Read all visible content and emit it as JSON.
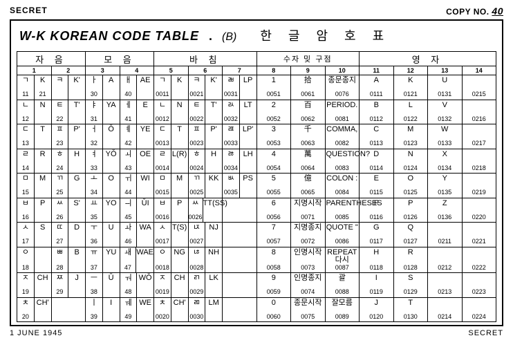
{
  "header": {
    "secret": "SECRET",
    "copy_label": "COPY NO.",
    "copy_num": "40"
  },
  "title": {
    "eng": "W-K KOREAN CODE TABLE",
    "dot": ".",
    "paren": "(B)",
    "kor": "한글암호표"
  },
  "groups": [
    {
      "label": "자 음",
      "cols": [
        "1",
        "2"
      ],
      "tight": false
    },
    {
      "label": "모 음",
      "cols": [
        "3",
        "4"
      ],
      "tight": false
    },
    {
      "label": "바 침",
      "cols": [
        "5",
        "6",
        "7"
      ],
      "tight": false
    },
    {
      "label": "수자 밎 구점",
      "cols": [
        "8",
        "9",
        "10"
      ],
      "tight": true
    },
    {
      "label": "영 자",
      "cols": [
        "11",
        "12",
        "13",
        "14"
      ],
      "tight": false
    }
  ],
  "rows": [
    [
      {
        "t": "sp",
        "l": {
          "s": "ㄱ",
          "c": "11"
        },
        "r": {
          "s": "K",
          "c": "21"
        }
      },
      {
        "t": "sp",
        "l": {
          "s": "ㅋ",
          "c": ""
        },
        "r": {
          "s": "K'",
          "c": ""
        }
      },
      {
        "t": "sp",
        "l": {
          "s": "ㅏ",
          "c": "30"
        },
        "r": {
          "s": "A",
          "c": ""
        }
      },
      {
        "t": "sp",
        "l": {
          "s": "ㅐ",
          "c": "40"
        },
        "r": {
          "s": "AE",
          "c": ""
        }
      },
      {
        "t": "sp",
        "l": {
          "s": "ㄱ",
          "c": "0011"
        },
        "r": {
          "s": "K",
          "c": ""
        }
      },
      {
        "t": "sp",
        "l": {
          "s": "ㅋ",
          "c": "0021"
        },
        "r": {
          "s": "K'",
          "c": ""
        }
      },
      {
        "t": "sp",
        "l": {
          "s": "ㄼ",
          "c": "0031"
        },
        "r": {
          "s": "LP",
          "c": ""
        }
      },
      {
        "t": "p",
        "s": "1",
        "c": "0051"
      },
      {
        "t": "p",
        "s": "拾",
        "c": "0061"
      },
      {
        "t": "p",
        "s": "종문종지",
        "c": "0076"
      },
      {
        "t": "p",
        "s": "A",
        "c": "0111"
      },
      {
        "t": "p",
        "s": "K",
        "c": "0121"
      },
      {
        "t": "p",
        "s": "U",
        "c": "0131"
      },
      {
        "t": "p",
        "s": "",
        "c": "0215"
      }
    ],
    [
      {
        "t": "sp",
        "l": {
          "s": "ㄴ",
          "c": "12"
        },
        "r": {
          "s": "N",
          "c": ""
        }
      },
      {
        "t": "sp",
        "l": {
          "s": "ㅌ",
          "c": "22"
        },
        "r": {
          "s": "T'",
          "c": ""
        }
      },
      {
        "t": "sp",
        "l": {
          "s": "ㅑ",
          "c": "31"
        },
        "r": {
          "s": "YA",
          "c": ""
        }
      },
      {
        "t": "sp",
        "l": {
          "s": "ㅔ",
          "c": "41"
        },
        "r": {
          "s": "E",
          "c": ""
        }
      },
      {
        "t": "sp",
        "l": {
          "s": "ㄴ",
          "c": "0012"
        },
        "r": {
          "s": "N",
          "c": ""
        }
      },
      {
        "t": "sp",
        "l": {
          "s": "ㅌ",
          "c": "0022"
        },
        "r": {
          "s": "T'",
          "c": ""
        }
      },
      {
        "t": "sp",
        "l": {
          "s": "ㄽ",
          "c": "0032"
        },
        "r": {
          "s": "LT",
          "c": ""
        }
      },
      {
        "t": "p",
        "s": "2",
        "c": "0052"
      },
      {
        "t": "p",
        "s": "百",
        "c": "0062"
      },
      {
        "t": "p",
        "s": "PERIOD.",
        "c": "0081"
      },
      {
        "t": "p",
        "s": "B",
        "c": "0112"
      },
      {
        "t": "p",
        "s": "L",
        "c": "0122"
      },
      {
        "t": "p",
        "s": "V",
        "c": "0132"
      },
      {
        "t": "p",
        "s": "",
        "c": "0216"
      }
    ],
    [
      {
        "t": "sp",
        "l": {
          "s": "ㄷ",
          "c": "13"
        },
        "r": {
          "s": "T",
          "c": ""
        }
      },
      {
        "t": "sp",
        "l": {
          "s": "ㅍ",
          "c": "23"
        },
        "r": {
          "s": "P'",
          "c": ""
        }
      },
      {
        "t": "sp",
        "l": {
          "s": "ㅓ",
          "c": "32"
        },
        "r": {
          "s": "Ǒ",
          "c": ""
        }
      },
      {
        "t": "sp",
        "l": {
          "s": "ㅖ",
          "c": "42"
        },
        "r": {
          "s": "YE",
          "c": ""
        }
      },
      {
        "t": "sp",
        "l": {
          "s": "ㄷ",
          "c": "0013"
        },
        "r": {
          "s": "T",
          "c": ""
        }
      },
      {
        "t": "sp",
        "l": {
          "s": "ㅍ",
          "c": "0023"
        },
        "r": {
          "s": "P'",
          "c": ""
        }
      },
      {
        "t": "sp",
        "l": {
          "s": "ㄿ",
          "c": "0033"
        },
        "r": {
          "s": "LP'",
          "c": ""
        }
      },
      {
        "t": "p",
        "s": "3",
        "c": "0053"
      },
      {
        "t": "p",
        "s": "千",
        "c": "0063"
      },
      {
        "t": "p",
        "s": "COMMA,",
        "c": "0082"
      },
      {
        "t": "p",
        "s": "C",
        "c": "0113"
      },
      {
        "t": "p",
        "s": "M",
        "c": "0123"
      },
      {
        "t": "p",
        "s": "W",
        "c": "0133"
      },
      {
        "t": "p",
        "s": "",
        "c": "0217"
      }
    ],
    [
      {
        "t": "sp",
        "l": {
          "s": "ㄹ",
          "c": "14"
        },
        "r": {
          "s": "R",
          "c": ""
        }
      },
      {
        "t": "sp",
        "l": {
          "s": "ㅎ",
          "c": "24"
        },
        "r": {
          "s": "H",
          "c": ""
        }
      },
      {
        "t": "sp",
        "l": {
          "s": "ㅕ",
          "c": "33"
        },
        "r": {
          "s": "YǑ",
          "c": ""
        }
      },
      {
        "t": "sp",
        "l": {
          "s": "ㅚ",
          "c": "43"
        },
        "r": {
          "s": "OE",
          "c": ""
        }
      },
      {
        "t": "sp",
        "l": {
          "s": "ㄹ",
          "c": "0014"
        },
        "r": {
          "s": "L(R)",
          "c": ""
        }
      },
      {
        "t": "sp",
        "l": {
          "s": "ㅎ",
          "c": "0024"
        },
        "r": {
          "s": "H",
          "c": ""
        }
      },
      {
        "t": "sp",
        "l": {
          "s": "ㅀ",
          "c": "0034"
        },
        "r": {
          "s": "LH",
          "c": ""
        }
      },
      {
        "t": "p",
        "s": "4",
        "c": "0054"
      },
      {
        "t": "p",
        "s": "萬",
        "c": "0064"
      },
      {
        "t": "p",
        "s": "QUESTION?",
        "c": "0083"
      },
      {
        "t": "p",
        "s": "D",
        "c": "0114"
      },
      {
        "t": "p",
        "s": "N",
        "c": "0124"
      },
      {
        "t": "p",
        "s": "X",
        "c": "0134"
      },
      {
        "t": "p",
        "s": "",
        "c": "0218"
      }
    ],
    [
      {
        "t": "sp",
        "l": {
          "s": "ㅁ",
          "c": "15"
        },
        "r": {
          "s": "M",
          "c": ""
        }
      },
      {
        "t": "sp",
        "l": {
          "s": "ㄲ",
          "c": "25"
        },
        "r": {
          "s": "G",
          "c": ""
        }
      },
      {
        "t": "sp",
        "l": {
          "s": "ㅗ",
          "c": "34"
        },
        "r": {
          "s": "O",
          "c": ""
        }
      },
      {
        "t": "sp",
        "l": {
          "s": "ㅟ",
          "c": "44"
        },
        "r": {
          "s": "WI",
          "c": ""
        }
      },
      {
        "t": "sp",
        "l": {
          "s": "ㅁ",
          "c": "0015"
        },
        "r": {
          "s": "M",
          "c": ""
        }
      },
      {
        "t": "sp",
        "l": {
          "s": "ㄲ",
          "c": "0025"
        },
        "r": {
          "s": "KK",
          "c": ""
        }
      },
      {
        "t": "sp",
        "l": {
          "s": "ㅄ",
          "c": "0035"
        },
        "r": {
          "s": "PS",
          "c": ""
        }
      },
      {
        "t": "p",
        "s": "5",
        "c": "0055"
      },
      {
        "t": "p",
        "s": "億",
        "c": "0065"
      },
      {
        "t": "p",
        "s": "COLON :",
        "c": "0084"
      },
      {
        "t": "p",
        "s": "E",
        "c": "0115"
      },
      {
        "t": "p",
        "s": "O",
        "c": "0125"
      },
      {
        "t": "p",
        "s": "Y",
        "c": "0135"
      },
      {
        "t": "p",
        "s": "",
        "c": "0219"
      }
    ],
    [
      {
        "t": "sp",
        "l": {
          "s": "ㅂ",
          "c": "16"
        },
        "r": {
          "s": "P",
          "c": ""
        }
      },
      {
        "t": "sp",
        "l": {
          "s": "ㅆ",
          "c": "26"
        },
        "r": {
          "s": "S'",
          "c": ""
        }
      },
      {
        "t": "sp",
        "l": {
          "s": "ㅛ",
          "c": "35"
        },
        "r": {
          "s": "YO",
          "c": ""
        }
      },
      {
        "t": "sp",
        "l": {
          "s": "ㅢ",
          "c": "45"
        },
        "r": {
          "s": "ǓI",
          "c": ""
        }
      },
      {
        "t": "sp",
        "l": {
          "s": "ㅂ",
          "c": "0016"
        },
        "r": {
          "s": "P",
          "c": ""
        }
      },
      {
        "t": "sp",
        "l": {
          "s": "ㅆ",
          "c": "0026"
        },
        "r": {
          "s": "TT(SS)",
          "c": ""
        }
      },
      {
        "t": "e"
      },
      {
        "t": "p",
        "s": "6",
        "c": "0056"
      },
      {
        "t": "p",
        "s": "지명시작",
        "c": "0071"
      },
      {
        "t": "p",
        "s": "PARENTHESES",
        "c": "0085"
      },
      {
        "t": "p",
        "s": "F",
        "c": "0116"
      },
      {
        "t": "p",
        "s": "P",
        "c": "0126"
      },
      {
        "t": "p",
        "s": "Z",
        "c": "0136"
      },
      {
        "t": "p",
        "s": "",
        "c": "0220"
      }
    ],
    [
      {
        "t": "sp",
        "l": {
          "s": "ㅅ",
          "c": "17"
        },
        "r": {
          "s": "S",
          "c": ""
        }
      },
      {
        "t": "sp",
        "l": {
          "s": "ㄸ",
          "c": "27"
        },
        "r": {
          "s": "D",
          "c": ""
        }
      },
      {
        "t": "sp",
        "l": {
          "s": "ㅜ",
          "c": "36"
        },
        "r": {
          "s": "U",
          "c": ""
        }
      },
      {
        "t": "sp",
        "l": {
          "s": "ㅘ",
          "c": "46"
        },
        "r": {
          "s": "WA",
          "c": ""
        }
      },
      {
        "t": "sp",
        "l": {
          "s": "ㅅ",
          "c": "0017"
        },
        "r": {
          "s": "T(S)",
          "c": ""
        }
      },
      {
        "t": "sp",
        "l": {
          "s": "ㄵ",
          "c": "0027"
        },
        "r": {
          "s": "NJ",
          "c": ""
        }
      },
      {
        "t": "e"
      },
      {
        "t": "p",
        "s": "7",
        "c": "0057"
      },
      {
        "t": "p",
        "s": "지명종지",
        "c": "0072"
      },
      {
        "t": "p",
        "s": "QUOTE \"",
        "c": "0086"
      },
      {
        "t": "p",
        "s": "G",
        "c": "0117"
      },
      {
        "t": "p",
        "s": "Q",
        "c": "0127"
      },
      {
        "t": "p",
        "s": "",
        "c": "0211"
      },
      {
        "t": "p",
        "s": "",
        "c": "0221"
      }
    ],
    [
      {
        "t": "sp",
        "l": {
          "s": "ㅇ",
          "c": "18"
        },
        "r": {
          "s": "",
          "c": ""
        }
      },
      {
        "t": "sp",
        "l": {
          "s": "ㅃ",
          "c": "28"
        },
        "r": {
          "s": "B",
          "c": ""
        }
      },
      {
        "t": "sp",
        "l": {
          "s": "ㅠ",
          "c": "37"
        },
        "r": {
          "s": "YU",
          "c": ""
        }
      },
      {
        "t": "sp",
        "l": {
          "s": "ㅙ",
          "c": "47"
        },
        "r": {
          "s": "WAE",
          "c": ""
        }
      },
      {
        "t": "sp",
        "l": {
          "s": "ㅇ",
          "c": "0018"
        },
        "r": {
          "s": "NG",
          "c": ""
        }
      },
      {
        "t": "sp",
        "l": {
          "s": "ㄶ",
          "c": "0028"
        },
        "r": {
          "s": "NH",
          "c": ""
        }
      },
      {
        "t": "e"
      },
      {
        "t": "p",
        "s": "8",
        "c": "0058"
      },
      {
        "t": "p",
        "s": "인명시작",
        "c": "0073"
      },
      {
        "t": "p",
        "s": "REPEAT 다시",
        "c": "0087"
      },
      {
        "t": "p",
        "s": "H",
        "c": "0118"
      },
      {
        "t": "p",
        "s": "R",
        "c": "0128"
      },
      {
        "t": "p",
        "s": "",
        "c": "0212"
      },
      {
        "t": "p",
        "s": "",
        "c": "0222"
      }
    ],
    [
      {
        "t": "sp",
        "l": {
          "s": "ㅈ",
          "c": "19"
        },
        "r": {
          "s": "CH",
          "c": ""
        }
      },
      {
        "t": "sp",
        "l": {
          "s": "ㅉ",
          "c": "29"
        },
        "r": {
          "s": "J",
          "c": ""
        }
      },
      {
        "t": "sp",
        "l": {
          "s": "ㅡ",
          "c": "38"
        },
        "r": {
          "s": "Ǔ",
          "c": ""
        }
      },
      {
        "t": "sp",
        "l": {
          "s": "ㅝ",
          "c": "48"
        },
        "r": {
          "s": "WǑ",
          "c": ""
        }
      },
      {
        "t": "sp",
        "l": {
          "s": "ㅈ",
          "c": "0019"
        },
        "r": {
          "s": "CH",
          "c": ""
        }
      },
      {
        "t": "sp",
        "l": {
          "s": "ㄺ",
          "c": "0029"
        },
        "r": {
          "s": "LK",
          "c": ""
        }
      },
      {
        "t": "e"
      },
      {
        "t": "p",
        "s": "9",
        "c": "0059"
      },
      {
        "t": "p",
        "s": "인명종지",
        "c": "0074"
      },
      {
        "t": "p",
        "s": "괄",
        "c": "0088"
      },
      {
        "t": "p",
        "s": "I",
        "c": "0119"
      },
      {
        "t": "p",
        "s": "S",
        "c": "0129"
      },
      {
        "t": "p",
        "s": "",
        "c": "0213"
      },
      {
        "t": "p",
        "s": "",
        "c": "0223"
      }
    ],
    [
      {
        "t": "sp",
        "l": {
          "s": "ㅊ",
          "c": "20"
        },
        "r": {
          "s": "CH'",
          "c": ""
        }
      },
      {
        "t": "e"
      },
      {
        "t": "sp",
        "l": {
          "s": "ㅣ",
          "c": "39"
        },
        "r": {
          "s": "I",
          "c": ""
        }
      },
      {
        "t": "sp",
        "l": {
          "s": "ㅞ",
          "c": "49"
        },
        "r": {
          "s": "WE",
          "c": ""
        }
      },
      {
        "t": "sp",
        "l": {
          "s": "ㅊ",
          "c": "0020"
        },
        "r": {
          "s": "CH'",
          "c": ""
        }
      },
      {
        "t": "sp",
        "l": {
          "s": "ㄻ",
          "c": "0030"
        },
        "r": {
          "s": "LM",
          "c": ""
        }
      },
      {
        "t": "e"
      },
      {
        "t": "p",
        "s": "0",
        "c": "0060"
      },
      {
        "t": "p",
        "s": "종문시작",
        "c": "0075"
      },
      {
        "t": "p",
        "s": "잘모름",
        "c": "0089"
      },
      {
        "t": "p",
        "s": "J",
        "c": "0120"
      },
      {
        "t": "p",
        "s": "T",
        "c": "0130"
      },
      {
        "t": "p",
        "s": "",
        "c": "0214"
      },
      {
        "t": "p",
        "s": "",
        "c": "0224"
      }
    ]
  ],
  "footer": {
    "date": "1 JUNE 1945",
    "secret": "SECRET"
  }
}
